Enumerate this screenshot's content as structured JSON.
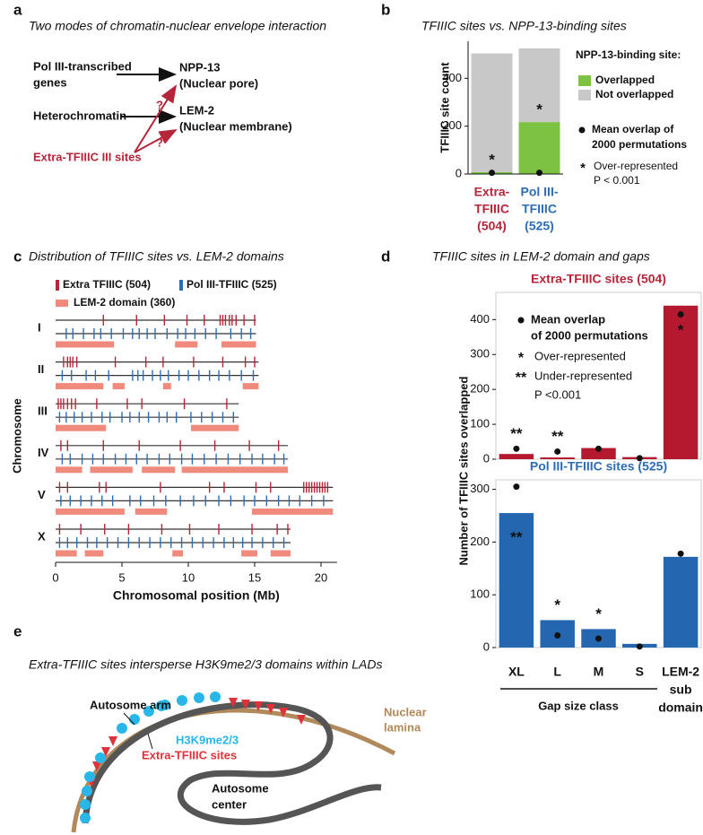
{
  "panel_labels": [
    "a",
    "b",
    "c",
    "d",
    "e"
  ],
  "panel_a": {
    "title": "Two modes of chromatin-nuclear envelope interaction",
    "sources": [
      [
        "Pol III-transcribed",
        "genes"
      ],
      [
        "Heterochromatin"
      ],
      [
        "Extra-TFIIIC III sites"
      ]
    ],
    "targets": [
      [
        "NPP-13",
        "(Nuclear pore)"
      ],
      [
        "LEM-2",
        "(Nuclear membrane)"
      ]
    ],
    "question": "?"
  },
  "panel_d": {
    "title": "TFIIIC sites in LEM-2 domain and gaps",
    "ylabel": "Number of TFIIIC sites overlapped",
    "group_label": "Gap size class"
  },
  "panel_e": {
    "title": "Extra-TFIIIC sites intersperse H3K9me2/3 domains within LADs",
    "arm": "Autosome arm",
    "mark": "H3K9me2/3",
    "sites": "Extra-TFIIIC sites",
    "lamina": [
      "Nuclear",
      "lamina"
    ],
    "center": [
      "Autosome",
      "center"
    ]
  },
  "chart_data": [
    {
      "type": "stackedbar",
      "title": "TFIIIC sites vs. NPP-13-binding sites",
      "ylabel": "TFIIIC site count",
      "categories": [
        [
          "Extra-",
          "TFIIIC",
          "(504)"
        ],
        [
          "Pol III-",
          "TFIIIC",
          "(525)"
        ]
      ],
      "category_colors": [
        "#b5263a",
        "#2e6db4"
      ],
      "series": [
        {
          "name": "Overlapped",
          "color": "#7dc242",
          "values": [
            8,
            217
          ]
        },
        {
          "name": "Not overlapped",
          "color": "#c8c8c8",
          "values": [
            496,
            308
          ]
        }
      ],
      "mean_overlap": [
        5,
        5
      ],
      "markers": [
        "*",
        "*"
      ],
      "legend_title": "NPP-13-binding site:",
      "mean_label": [
        "Mean overlap of",
        "2000 permutations"
      ],
      "notes": [
        {
          "symbol": "*",
          "text": "Over-represented"
        }
      ],
      "p_label": "P < 0.001",
      "ylim": [
        0,
        555
      ],
      "yticks": [
        0,
        200,
        400
      ]
    },
    {
      "type": "track",
      "title": "Distribution of TFIIIC sites vs. LEM-2 domains",
      "xlabel": "Chromosomal position (Mb)",
      "ylabel": "Chromosome",
      "xlim": [
        0,
        21.2
      ],
      "xticks": [
        0,
        5,
        10,
        15,
        20
      ],
      "series": [
        {
          "name": "Extra TFIIIC (504)",
          "color": "#b5263a"
        },
        {
          "name": "Pol III-TFIIIC (525)",
          "color": "#2e6db4"
        },
        {
          "name": "LEM-2 domain (360)",
          "color": "#f08a7c"
        }
      ],
      "chromosomes": [
        {
          "name": "I",
          "length": 15.1,
          "extra": [
            3.6,
            6.1,
            8.2,
            9.9,
            11.2,
            12.4,
            12.6,
            12.8,
            13.1,
            13.3,
            13.6,
            14.2,
            15.0
          ],
          "pol3": [
            0.8,
            1.3,
            2.1,
            2.9,
            3.4,
            4.2,
            5.1,
            5.8,
            6.3,
            6.9,
            7.5,
            8.4,
            9.2,
            9.8,
            10.5,
            11.3,
            12.1,
            13.2,
            14.0,
            14.7
          ],
          "lem2": [
            [
              0,
              4.4
            ],
            [
              9.0,
              10.7
            ],
            [
              12.5,
              15.1
            ]
          ]
        },
        {
          "name": "II",
          "length": 15.3,
          "extra": [
            0.6,
            0.9,
            1.1,
            1.3,
            1.6,
            4.5,
            6.8,
            8.1,
            10.4,
            12.6,
            14.3,
            15.0
          ],
          "pol3": [
            0.5,
            1.2,
            2.3,
            3.0,
            4.0,
            5.8,
            6.2,
            6.6,
            7.3,
            7.9,
            8.5,
            9.3,
            10.0,
            10.8,
            11.6,
            12.3,
            13.1,
            14.0,
            14.9
          ],
          "lem2": [
            [
              0,
              3.6
            ],
            [
              4.3,
              5.2
            ],
            [
              8.1,
              8.7
            ],
            [
              14.1,
              15.3
            ]
          ]
        },
        {
          "name": "III",
          "length": 13.8,
          "extra": [
            0.2,
            0.4,
            0.6,
            0.9,
            1.2,
            1.5,
            3.1,
            5.4,
            6.5,
            9.7,
            12.9
          ],
          "pol3": [
            0.3,
            0.8,
            1.4,
            2.0,
            2.7,
            3.5,
            4.1,
            5.0,
            5.6,
            6.3,
            7.0,
            7.8,
            8.4,
            9.1,
            10.2,
            11.0,
            11.8,
            12.6,
            13.4
          ],
          "lem2": [
            [
              0,
              3.8
            ],
            [
              10.2,
              13.8
            ]
          ]
        },
        {
          "name": "IV",
          "length": 17.5,
          "extra": [
            0.4,
            0.9,
            3.6,
            6.3,
            9.4,
            12.0,
            14.6,
            16.8
          ],
          "pol3": [
            0.5,
            1.1,
            2.0,
            2.8,
            3.6,
            4.5,
            5.3,
            6.1,
            6.9,
            7.8,
            8.6,
            9.5,
            10.3,
            11.2,
            12.1,
            13.0,
            13.9,
            14.8,
            15.6,
            16.5,
            17.2
          ],
          "lem2": [
            [
              0,
              2.0
            ],
            [
              2.6,
              5.8
            ],
            [
              6.5,
              9.0
            ],
            [
              9.5,
              17.5
            ]
          ]
        },
        {
          "name": "V",
          "length": 20.9,
          "extra": [
            0.3,
            0.9,
            3.3,
            3.8,
            7.9,
            11.6,
            12.7,
            15.1,
            16.2,
            18.7,
            18.9,
            19.1,
            19.3,
            19.5,
            19.7,
            19.9,
            20.1,
            20.3,
            20.5
          ],
          "pol3": [
            0.4,
            1.1,
            1.9,
            2.7,
            3.5,
            4.3,
            5.6,
            6.4,
            7.4,
            8.3,
            9.4,
            10.4,
            11.3,
            12.3,
            13.2,
            14.2,
            15.0,
            15.9,
            16.8,
            17.6,
            18.4,
            19.3,
            20.2
          ],
          "lem2": [
            [
              0,
              5.2
            ],
            [
              6.0,
              8.4
            ],
            [
              14.8,
              20.9
            ]
          ]
        },
        {
          "name": "X",
          "length": 17.7,
          "extra": [
            0.3,
            1.9,
            3.7,
            5.5,
            8.0,
            10.1,
            12.3,
            14.8,
            16.7,
            17.5
          ],
          "pol3": [
            0.3,
            0.9,
            1.6,
            2.4,
            3.1,
            3.9,
            4.7,
            5.5,
            6.3,
            7.1,
            7.9,
            8.7,
            9.5,
            10.3,
            11.1,
            11.9,
            12.7,
            13.4,
            14.1,
            14.8,
            15.6,
            16.4,
            17.2
          ],
          "lem2": [
            [
              0,
              1.6
            ],
            [
              2.2,
              3.6
            ],
            [
              8.8,
              9.6
            ],
            [
              14.0,
              15.2
            ],
            [
              16.2,
              17.7
            ]
          ]
        }
      ]
    },
    {
      "type": "bar",
      "title": "Extra-TFIIIC sites (504)",
      "title_color": "#b5263a",
      "color": "#b5192f",
      "values": [
        15,
        5,
        32,
        6,
        440
      ],
      "mean_overlap": [
        30,
        22,
        30,
        3,
        415
      ],
      "markers": [
        "**",
        "**",
        null,
        null,
        "*"
      ],
      "mean_label": [
        "Mean overlap",
        "of 2000 permutations"
      ],
      "notes": [
        {
          "symbol": "*",
          "text": "Over-represented"
        },
        {
          "symbol": "**",
          "text": "Under-represented"
        }
      ],
      "p_label": "P <0.001",
      "ylim": [
        0,
        478
      ],
      "yticks": [
        0,
        100,
        200,
        300,
        400
      ]
    },
    {
      "type": "bar",
      "title": "Pol III-TFIIIC sites (525)",
      "title_color": "#2e6db4",
      "color": "#2467b0",
      "categories": [
        [
          "XL"
        ],
        [
          "L"
        ],
        [
          "M"
        ],
        [
          "S"
        ],
        [
          "LEM-2",
          "sub",
          "domain"
        ]
      ],
      "values": [
        255,
        52,
        35,
        7,
        172
      ],
      "mean_overlap": [
        305,
        23,
        17,
        2,
        178
      ],
      "markers": [
        "**",
        "*",
        "*",
        null,
        null
      ],
      "ylim": [
        0,
        318
      ],
      "yticks": [
        0,
        100,
        200,
        300
      ]
    }
  ]
}
